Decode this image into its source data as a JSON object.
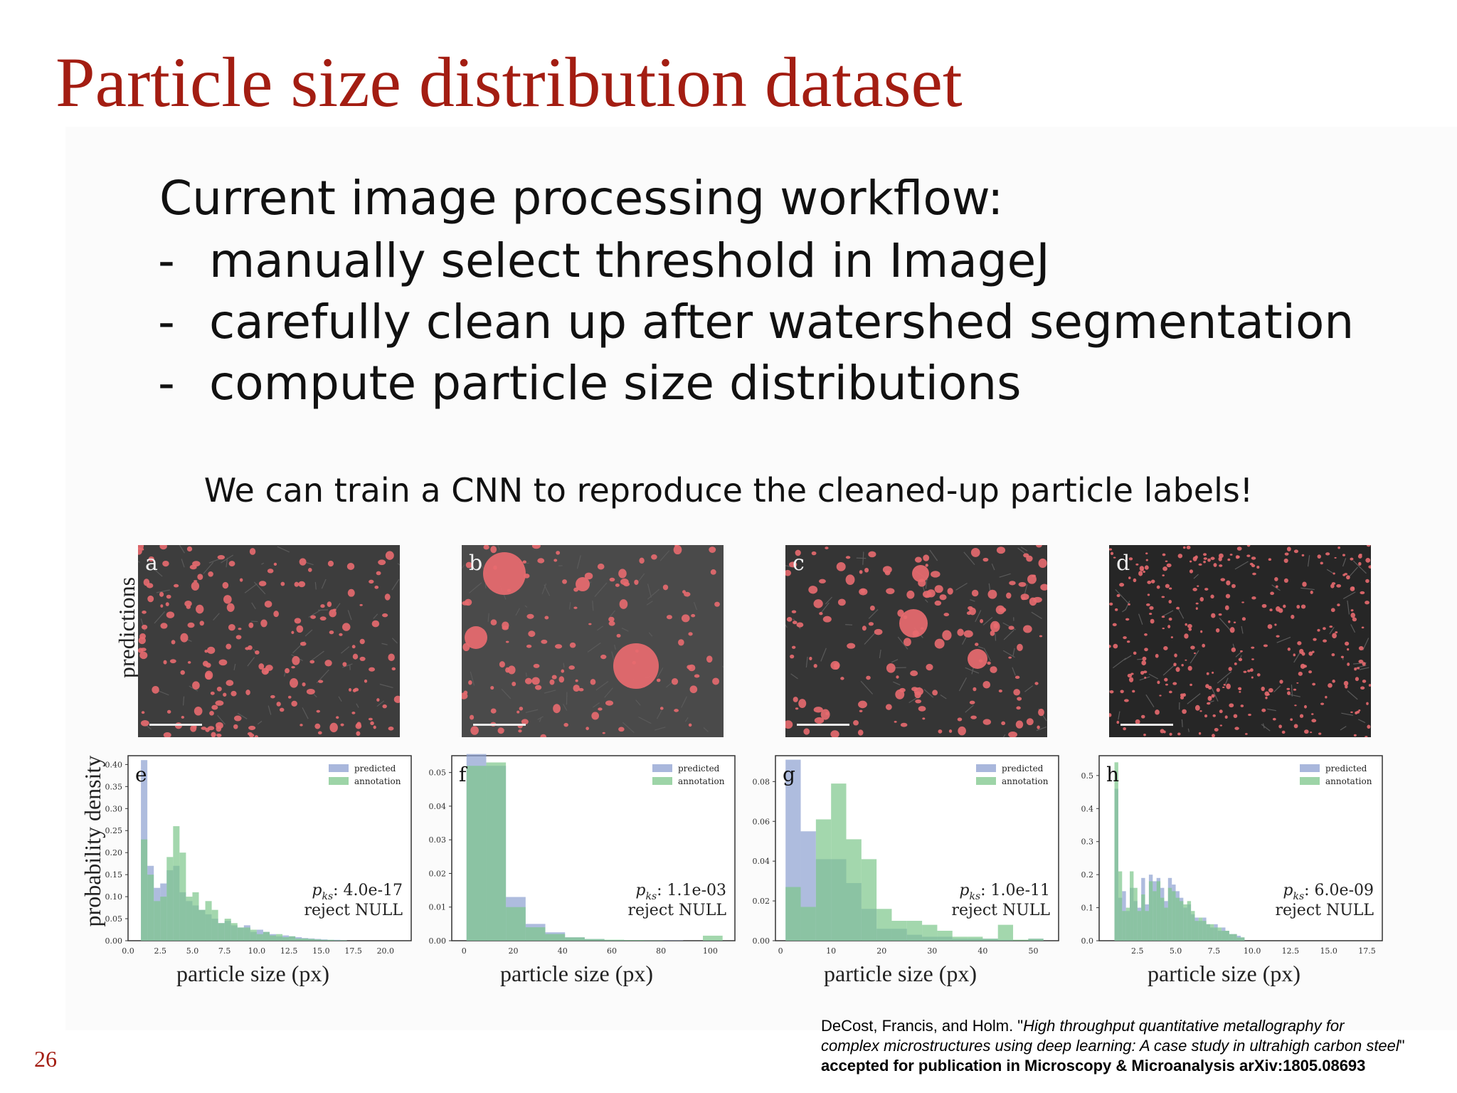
{
  "slide": {
    "title": "Particle size distribution dataset",
    "workflow_heading": "Current image processing workflow:",
    "bullet_dash": "-",
    "bullets": [
      "manually select threshold in ImageJ",
      "carefully clean up after watershed segmentation",
      "compute particle size distributions"
    ],
    "cnn_statement": "We can train a CNN to reproduce the cleaned-up particle labels!",
    "predictions_label": "predictions",
    "density_label": "probability density",
    "page_number": "26",
    "citation": {
      "line1_prefix": "DeCost, Francis, and Holm. \"",
      "line1_italic": "High throughput quantitative metallography for",
      "line2_italic": "complex microstructures using deep learning: A case study in ultrahigh carbon steel",
      "line2_suffix": "\"",
      "line3": "accepted for publication in Microscopy & Microanalysis arXiv:1805.08693"
    }
  },
  "panels": [
    {
      "letter": "a"
    },
    {
      "letter": "b"
    },
    {
      "letter": "c"
    },
    {
      "letter": "d"
    }
  ],
  "colors": {
    "title": "#a31d12",
    "predicted": "#8c9fd0",
    "annotation": "#7cc68a",
    "overlap": "#5f9e8a",
    "particle": "#e86a6f"
  },
  "chart_data": [
    {
      "type": "bar",
      "panel_letter": "e",
      "xlabel": "particle size (px)",
      "ylabel": "probability density",
      "xlim": [
        0,
        22
      ],
      "ylim": [
        0,
        0.42
      ],
      "xticks": [
        "0.0",
        "2.5",
        "5.0",
        "7.5",
        "10.0",
        "12.5",
        "15.0",
        "17.5",
        "20.0"
      ],
      "xtick_values": [
        0,
        2.5,
        5,
        7.5,
        10,
        12.5,
        15,
        17.5,
        20
      ],
      "yticks": [
        "0.00",
        "0.05",
        "0.10",
        "0.15",
        "0.20",
        "0.25",
        "0.30",
        "0.35",
        "0.40"
      ],
      "ytick_values": [
        0,
        0.05,
        0.1,
        0.15,
        0.2,
        0.25,
        0.3,
        0.35,
        0.4
      ],
      "bin_edges": [
        1,
        1.5,
        2,
        2.5,
        3,
        3.5,
        4,
        4.5,
        5,
        5.5,
        6,
        6.5,
        7,
        7.5,
        8,
        8.5,
        9,
        9.5,
        10,
        10.5,
        11,
        11.5,
        12,
        12.5,
        13,
        13.5,
        14,
        14.5,
        15,
        15.5,
        16,
        16.5,
        17
      ],
      "legend": [
        "predicted",
        "annotation"
      ],
      "legend_position": "top-right",
      "series": [
        {
          "name": "predicted",
          "values": [
            0.41,
            0.17,
            0.12,
            0.13,
            0.16,
            0.17,
            0.11,
            0.09,
            0.08,
            0.07,
            0.06,
            0.05,
            0.04,
            0.045,
            0.035,
            0.03,
            0.035,
            0.02,
            0.025,
            0.02,
            0.015,
            0.01,
            0.012,
            0.01,
            0.008,
            0.006,
            0.005,
            0.004,
            0.003,
            0.002,
            0.002,
            0.001
          ]
        },
        {
          "name": "annotation",
          "values": [
            0.23,
            0.15,
            0.09,
            0.1,
            0.19,
            0.26,
            0.2,
            0.1,
            0.11,
            0.07,
            0.09,
            0.07,
            0.04,
            0.05,
            0.04,
            0.03,
            0.03,
            0.025,
            0.015,
            0.02,
            0.012,
            0.015,
            0.008,
            0.01,
            0.005,
            0.005,
            0.004,
            0.003,
            0.002,
            0.002,
            0.001,
            0.001
          ]
        }
      ],
      "annotation_lines": [
        "4.0e-17",
        "reject NULL"
      ]
    },
    {
      "type": "bar",
      "panel_letter": "f",
      "xlabel": "particle size (px)",
      "ylabel": "",
      "xlim": [
        -5,
        110
      ],
      "ylim": [
        0,
        0.055
      ],
      "xticks": [
        "0",
        "20",
        "40",
        "60",
        "80",
        "100"
      ],
      "xtick_values": [
        0,
        20,
        40,
        60,
        80,
        100
      ],
      "yticks": [
        "0.00",
        "0.01",
        "0.02",
        "0.03",
        "0.04",
        "0.05"
      ],
      "ytick_values": [
        0,
        0.01,
        0.02,
        0.03,
        0.04,
        0.05
      ],
      "bin_edges": [
        1,
        9,
        17,
        25,
        33,
        41,
        49,
        57,
        65,
        73,
        81,
        89,
        97,
        105
      ],
      "legend": [
        "predicted",
        "annotation"
      ],
      "legend_position": "top-right",
      "series": [
        {
          "name": "predicted",
          "values": [
            0.0555,
            0.052,
            0.013,
            0.005,
            0.0025,
            0.001,
            0.0005,
            0.0002,
            0.0001,
            0.0001,
            0.0001,
            0.0,
            0.0001
          ]
        },
        {
          "name": "annotation",
          "values": [
            0.052,
            0.053,
            0.01,
            0.004,
            0.002,
            0.001,
            0.0005,
            0.0003,
            0.0002,
            0.0001,
            0.0,
            0.0,
            0.0015
          ]
        }
      ],
      "annotation_lines": [
        "1.1e-03",
        "reject NULL"
      ]
    },
    {
      "type": "bar",
      "panel_letter": "g",
      "xlabel": "particle size (px)",
      "ylabel": "",
      "xlim": [
        -1,
        55
      ],
      "ylim": [
        0,
        0.093
      ],
      "xticks": [
        "0",
        "10",
        "20",
        "30",
        "40",
        "50"
      ],
      "xtick_values": [
        0,
        10,
        20,
        30,
        40,
        50
      ],
      "yticks": [
        "0.00",
        "0.02",
        "0.04",
        "0.06",
        "0.08"
      ],
      "ytick_values": [
        0,
        0.02,
        0.04,
        0.06,
        0.08
      ],
      "bin_edges": [
        1,
        4,
        7,
        10,
        13,
        16,
        19,
        22,
        25,
        28,
        31,
        34,
        37,
        40,
        43,
        46,
        49,
        52
      ],
      "legend": [
        "predicted",
        "annotation"
      ],
      "legend_position": "top-right",
      "series": [
        {
          "name": "predicted",
          "values": [
            0.091,
            0.055,
            0.041,
            0.041,
            0.029,
            0.016,
            0.006,
            0.006,
            0.003,
            0.002,
            0.002,
            0.001,
            0.001,
            0.001,
            0.0005,
            0.0,
            0.001
          ]
        },
        {
          "name": "annotation",
          "values": [
            0.027,
            0.017,
            0.061,
            0.079,
            0.051,
            0.041,
            0.016,
            0.01,
            0.01,
            0.008,
            0.005,
            0.002,
            0.002,
            0.001,
            0.008,
            0.0005,
            0.001
          ]
        }
      ],
      "annotation_lines": [
        "1.0e-11",
        "reject NULL"
      ]
    },
    {
      "type": "bar",
      "panel_letter": "h",
      "xlabel": "particle size (px)",
      "ylabel": "",
      "xlim": [
        0,
        18.5
      ],
      "ylim": [
        0,
        0.56
      ],
      "xticks": [
        "2.5",
        "5.0",
        "7.5",
        "10.0",
        "12.5",
        "15.0",
        "17.5"
      ],
      "xtick_values": [
        2.5,
        5,
        7.5,
        10,
        12.5,
        15,
        17.5
      ],
      "yticks": [
        "0.0",
        "0.1",
        "0.2",
        "0.3",
        "0.4",
        "0.5"
      ],
      "ytick_values": [
        0,
        0.1,
        0.2,
        0.3,
        0.4,
        0.5
      ],
      "bin_edges": [
        1,
        1.25,
        1.5,
        1.75,
        2,
        2.25,
        2.5,
        2.75,
        3,
        3.25,
        3.5,
        3.75,
        4,
        4.25,
        4.5,
        4.75,
        5,
        5.25,
        5.5,
        5.75,
        6,
        6.25,
        6.5,
        6.75,
        7,
        7.25,
        7.5,
        7.75,
        8,
        8.25,
        8.5,
        8.75,
        9,
        9.25,
        9.5
      ],
      "legend": [
        "predicted",
        "annotation"
      ],
      "legend_position": "top-right",
      "series": [
        {
          "name": "predicted",
          "values": [
            0.46,
            0.13,
            0.15,
            0.09,
            0.16,
            0.12,
            0.1,
            0.19,
            0.11,
            0.2,
            0.18,
            0.19,
            0.16,
            0.12,
            0.19,
            0.17,
            0.15,
            0.13,
            0.1,
            0.11,
            0.08,
            0.07,
            0.06,
            0.07,
            0.05,
            0.04,
            0.05,
            0.03,
            0.04,
            0.03,
            0.02,
            0.02,
            0.015,
            0.01
          ]
        },
        {
          "name": "annotation",
          "values": [
            0.54,
            0.21,
            0.09,
            0.1,
            0.21,
            0.16,
            0.09,
            0.14,
            0.09,
            0.18,
            0.15,
            0.18,
            0.13,
            0.1,
            0.16,
            0.15,
            0.13,
            0.12,
            0.11,
            0.12,
            0.09,
            0.06,
            0.07,
            0.06,
            0.05,
            0.05,
            0.04,
            0.04,
            0.03,
            0.03,
            0.02,
            0.02,
            0.01,
            0.01
          ]
        }
      ],
      "annotation_lines": [
        "6.0e-09",
        "reject NULL"
      ]
    }
  ]
}
